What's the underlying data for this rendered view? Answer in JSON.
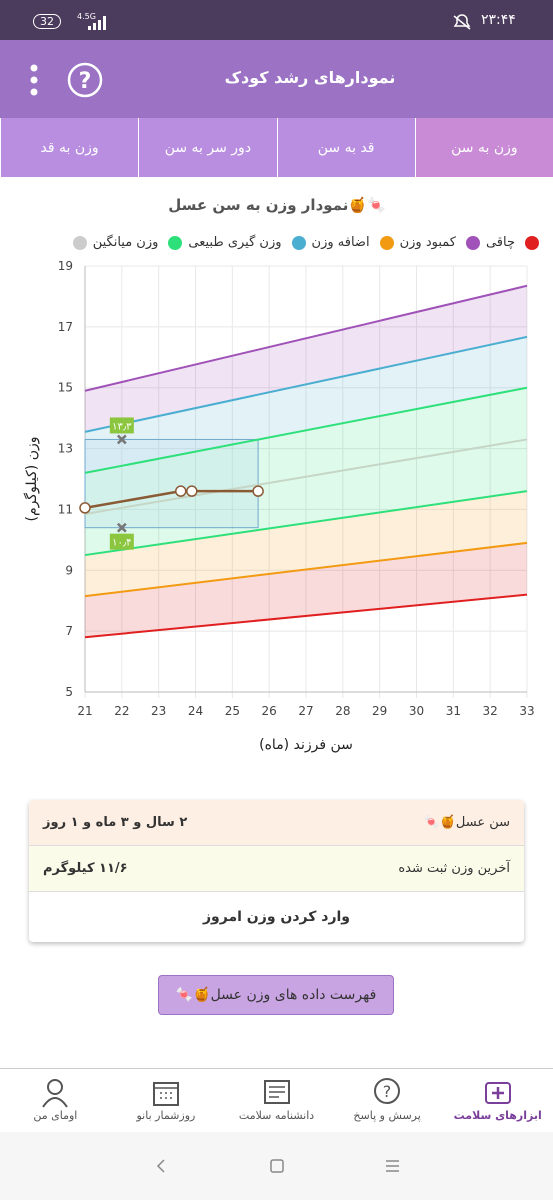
{
  "status_bar": {
    "battery": "32",
    "network": "4.5G",
    "time": "۲۳:۴۴"
  },
  "header": {
    "title": "نمودارهای رشد کودک"
  },
  "tabs": [
    "وزن به سن",
    "قد به سن",
    "دور سر به سن",
    "وزن به قد"
  ],
  "chart_data": {
    "type": "line",
    "title": "نمودار وزن به سن عسل🍯🍬",
    "x_label": "سن فرزند (ماه)",
    "y_label": "وزن (کیلوگرم)",
    "legend": [
      {
        "color": "#e02020"
      },
      {
        "name": "چاقی",
        "color": "#a052b8"
      },
      {
        "name": "کمبود وزن",
        "color": "#f29a12"
      },
      {
        "name": "اضافه وزن",
        "color": "#4aaed0"
      },
      {
        "name": "وزن گیری طبیعی",
        "color": "#2ee07a"
      },
      {
        "name": "وزن میانگین",
        "color": "#cccccc"
      }
    ],
    "series": [
      {
        "color": "#a052b8",
        "x": [
          21,
          33
        ],
        "values": [
          14.9,
          18.35
        ]
      },
      {
        "color": "#4aaed0",
        "x": [
          21,
          33
        ],
        "values": [
          13.55,
          16.67
        ]
      },
      {
        "color": "#2ee07a",
        "x": [
          21,
          33
        ],
        "values": [
          12.2,
          15.0
        ]
      },
      {
        "color": "#c6d6c6",
        "x": [
          21,
          33
        ],
        "values": [
          10.85,
          13.3
        ]
      },
      {
        "color": "#2ee07a",
        "x": [
          21,
          33
        ],
        "values": [
          9.5,
          11.6
        ]
      },
      {
        "color": "#f29a12",
        "x": [
          21,
          33
        ],
        "values": [
          8.15,
          9.9
        ]
      },
      {
        "color": "#e02020",
        "x": [
          21,
          33
        ],
        "values": [
          6.8,
          8.2
        ]
      },
      {
        "color": "#8a5a34",
        "markers": true,
        "x": [
          21,
          23.6,
          23.9,
          25.7
        ],
        "values": [
          11.05,
          11.6,
          11.6,
          11.6
        ]
      }
    ],
    "annotations": [
      {
        "x": 22,
        "value": 13.3,
        "label": "۱۳٫۳"
      },
      {
        "x": 22,
        "value": 10.4,
        "label": "۱۰٫۴"
      }
    ],
    "xlim": [
      21,
      33
    ],
    "xticks": [
      21,
      22,
      23,
      24,
      25,
      26,
      27,
      28,
      29,
      30,
      31,
      32,
      33
    ],
    "ylim": [
      5,
      19
    ],
    "yticks": [
      5,
      7,
      9,
      11,
      13,
      15,
      17,
      19
    ],
    "grid": true
  },
  "summary": {
    "name_label": "سن عسل🍯🍬",
    "age": "۲ سال و ۳ ماه و ۱ روز",
    "last_weight_label": "آخرین وزن ثبت شده",
    "last_weight": "۱۱/۶ کیلوگرم",
    "action": "وارد کردن وزن امروز"
  },
  "list_button": "فهرست داده های وزن عسل🍯🍬",
  "bottom_nav": [
    "ابزارهای سلامت",
    "پرسش و پاسخ",
    "دانشنامه سلامت",
    "روزشمار بانو",
    "اومای من"
  ]
}
